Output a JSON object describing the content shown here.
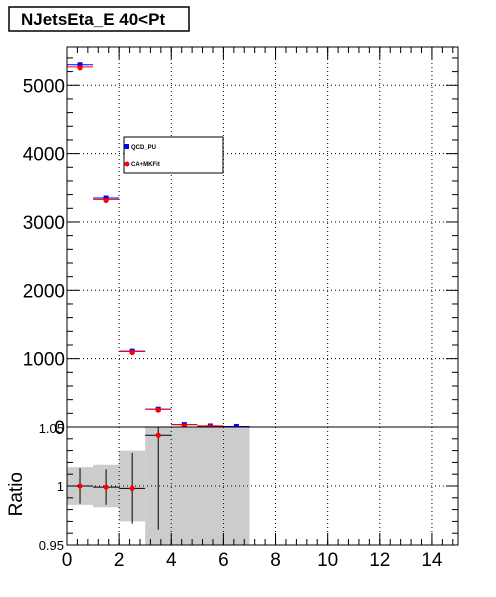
{
  "title": "NJetsEta_E 40<Pt",
  "chart_data": [
    {
      "type": "scatter",
      "panel": "main",
      "x": [
        0.5,
        1.5,
        2.5,
        3.5,
        4.5,
        5.5,
        6.5
      ],
      "series": [
        {
          "name": "QCD_PU",
          "color": "#0000ff",
          "values": [
            5300,
            3350,
            1110,
            260,
            35,
            15,
            8
          ]
        },
        {
          "name": "CA+MKFit",
          "color": "#ff0000",
          "values": [
            5270,
            3330,
            1105,
            262,
            34,
            16,
            null
          ]
        }
      ],
      "xlim": [
        0,
        15
      ],
      "ylim": [
        0,
        5560
      ],
      "yticks": [
        {
          "value": 1000,
          "label": "1000"
        },
        {
          "value": 2000,
          "label": "2000"
        },
        {
          "value": 3000,
          "label": "3000"
        },
        {
          "value": 4000,
          "label": "4000"
        },
        {
          "value": 5000,
          "label": "5000"
        }
      ],
      "ytick_zero_label": "0",
      "grid": true,
      "legend": "upper-left"
    },
    {
      "type": "scatter",
      "panel": "ratio",
      "ylabel": "Ratio",
      "x": [
        0.5,
        1.5,
        2.5,
        3.5
      ],
      "values": [
        1.0,
        0.999,
        0.998,
        1.043
      ],
      "yerr": [
        0.015,
        0.015,
        0.03,
        0.08
      ],
      "band": [
        {
          "x0": 0,
          "x1": 1,
          "lo": 0.984,
          "hi": 1.016
        },
        {
          "x0": 1,
          "x1": 2,
          "lo": 0.982,
          "hi": 1.018
        },
        {
          "x0": 2,
          "x1": 3,
          "lo": 0.97,
          "hi": 1.03
        },
        {
          "x0": 3,
          "x1": 7,
          "lo": 0.95,
          "hi": 1.05
        }
      ],
      "xlim": [
        0,
        15
      ],
      "ylim": [
        0.95,
        1.05
      ],
      "xticks": [
        {
          "value": 0,
          "label": "0"
        },
        {
          "value": 2,
          "label": "2"
        },
        {
          "value": 4,
          "label": "4"
        },
        {
          "value": 6,
          "label": "6"
        },
        {
          "value": 8,
          "label": "8"
        },
        {
          "value": 10,
          "label": "10"
        },
        {
          "value": 12,
          "label": "12"
        },
        {
          "value": 14,
          "label": "14"
        }
      ],
      "yticks": [
        {
          "value": 0.95,
          "label": "0.95"
        },
        {
          "value": 1.0,
          "label": "1"
        },
        {
          "value": 1.05,
          "label": "1.05"
        }
      ],
      "grid": true
    }
  ]
}
